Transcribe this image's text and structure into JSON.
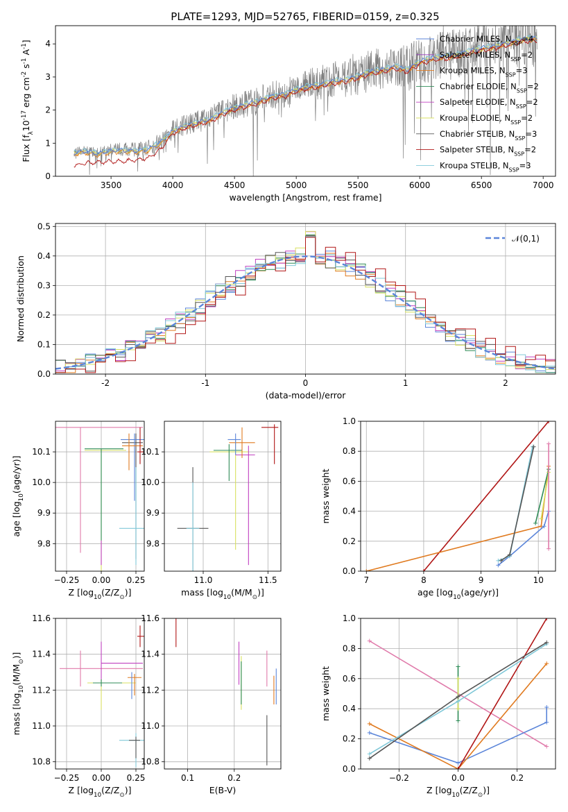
{
  "figure": {
    "title": "PLATE=1293, MJD=52765, FIBERID=0159, z=0.325"
  },
  "colors": {
    "chabrier_miles": "#5b85d9",
    "salpeter_miles": "#9a3fc0",
    "kroupa_miles": "#e07a1f",
    "chabrier_elodie": "#2e8b57",
    "salpeter_elodie": "#c040c0",
    "kroupa_elodie": "#d8e060",
    "chabrier_stelib": "#555555",
    "salpeter_stelib": "#b01515",
    "kroupa_stelib": "#80c8d8",
    "pink": "#e07aaa",
    "grey_data": "#808080"
  },
  "chart_data": [
    {
      "id": "spectrum",
      "type": "line",
      "xlabel": "wavelength [Angstrom, rest frame]",
      "ylabel": "Flux [f$_\\lambda$10$^{-17}$ erg cm$^{-2}$ s$^{-1}$ A$^{-1}$]",
      "xlim": [
        3050,
        7100
      ],
      "ylim": [
        0,
        4.55
      ],
      "xticks": [
        3500,
        4000,
        4500,
        5000,
        5500,
        6000,
        6500,
        7000
      ],
      "yticks": [
        0,
        1,
        2,
        3,
        4
      ],
      "grid": false,
      "legend_position": "upper-right",
      "legend": [
        {
          "name": "Chabrier MILES, N$_{SSP}$=4",
          "color_key": "chabrier_miles"
        },
        {
          "name": "Salpeter MILES, N$_{SSP}$=2",
          "color_key": "salpeter_miles"
        },
        {
          "name": "Kroupa MILES, N$_{SSP}$=3",
          "color_key": "kroupa_miles"
        },
        {
          "name": "Chabrier ELODIE, N$_{SSP}$=2",
          "color_key": "chabrier_elodie"
        },
        {
          "name": "Salpeter ELODIE, N$_{SSP}$=2",
          "color_key": "salpeter_elodie"
        },
        {
          "name": "Kroupa ELODIE, N$_{SSP}$=2",
          "color_key": "kroupa_elodie"
        },
        {
          "name": "Chabrier STELIB, N$_{SSP}$=3",
          "color_key": "chabrier_stelib"
        },
        {
          "name": "Salpeter STELIB, N$_{SSP}$=2",
          "color_key": "salpeter_stelib"
        },
        {
          "name": "Kroupa STELIB, N$_{SSP}$=3",
          "color_key": "kroupa_stelib"
        }
      ],
      "continuum": {
        "x": [
          3200,
          3300,
          3400,
          3500,
          3600,
          3700,
          3800,
          3900,
          4000,
          4100,
          4200,
          4300,
          4400,
          4500,
          4600,
          4700,
          4800,
          4900,
          5000,
          5100,
          5200,
          5300,
          5400,
          5500,
          5600,
          5700,
          5800,
          5900,
          6000,
          6100,
          6200,
          6300,
          6400,
          6500,
          6600,
          6700,
          6800,
          6900
        ],
        "model_red": [
          0.33,
          0.4,
          0.42,
          0.45,
          0.45,
          0.5,
          0.55,
          0.8,
          1.3,
          1.45,
          1.55,
          1.65,
          1.85,
          2.0,
          2.1,
          2.2,
          2.35,
          2.4,
          2.55,
          2.65,
          2.7,
          2.8,
          2.85,
          2.95,
          3.1,
          3.15,
          3.25,
          3.15,
          3.4,
          3.5,
          3.55,
          3.6,
          3.7,
          3.8,
          3.85,
          3.95,
          4.05,
          4.1
        ],
        "model_cyan": [
          0.75,
          0.78,
          0.72,
          0.8,
          0.82,
          0.8,
          0.85,
          1.05,
          1.4,
          1.55,
          1.65,
          1.75,
          1.95,
          2.1,
          2.2,
          2.3,
          2.45,
          2.5,
          2.65,
          2.75,
          2.8,
          2.9,
          2.95,
          3.05,
          3.2,
          3.25,
          3.35,
          3.25,
          3.5,
          3.6,
          3.65,
          3.7,
          3.8,
          3.9,
          3.95,
          4.05,
          4.15,
          4.2
        ]
      }
    },
    {
      "id": "residuals",
      "type": "histogram",
      "xlabel": "(data-model)/error",
      "ylabel": "Normed distribution",
      "xlim": [
        -2.5,
        2.5
      ],
      "ylim": [
        0,
        0.51
      ],
      "xticks": [
        -2,
        -1,
        0,
        1,
        2
      ],
      "yticks": [
        0.0,
        0.1,
        0.2,
        0.3,
        0.4,
        0.5
      ],
      "grid": true,
      "legend_position": "upper-right",
      "legend": [
        {
          "name": "$\\mathcal{N}(0,1)$",
          "color_key": "chabrier_miles",
          "style": "dashed"
        }
      ]
    },
    {
      "id": "age_vs_Z",
      "type": "errorbar",
      "xlabel": "Z [log$_{10}$(Z/Z$_\\odot$)]",
      "ylabel": "age  [log$_{10}$(age/yr)]",
      "xlim": [
        -0.33,
        0.31
      ],
      "ylim": [
        9.71,
        10.2
      ],
      "xticks": [
        -0.25,
        0.0,
        0.25
      ],
      "yticks": [
        9.8,
        9.9,
        10.0,
        10.1
      ],
      "tick_labels_x": [
        "−0.25",
        "0.00",
        "0.25"
      ],
      "grid": true
    },
    {
      "id": "age_vs_mass",
      "type": "errorbar",
      "xlabel": "mass [log$_{10}$(M/M$_\\odot$)]",
      "xlim": [
        10.7,
        11.6
      ],
      "ylim": [
        9.71,
        10.2
      ],
      "xticks": [
        11.0,
        11.5
      ],
      "yticks": [
        9.8,
        9.9,
        10.0,
        10.1
      ],
      "grid": true
    },
    {
      "id": "weight_vs_age",
      "type": "line",
      "xlabel": "age  [log$_{10}$(age/yr)]",
      "ylabel": "mass weight",
      "xlim": [
        6.9,
        10.3
      ],
      "ylim": [
        0,
        1.0
      ],
      "xticks": [
        7,
        8,
        9,
        10
      ],
      "yticks": [
        0.0,
        0.2,
        0.4,
        0.6,
        0.8,
        1.0
      ],
      "grid": true,
      "series": [
        {
          "color_key": "salpeter_stelib",
          "x": [
            8.0,
            10.18
          ],
          "y": [
            0.0,
            1.0
          ]
        },
        {
          "color_key": "kroupa_miles",
          "x": [
            7.0,
            10.05,
            10.18
          ],
          "y": [
            0.0,
            0.3,
            0.7
          ]
        },
        {
          "color_key": "chabrier_miles",
          "x": [
            9.3,
            9.5,
            10.1,
            10.18
          ],
          "y": [
            0.04,
            0.1,
            0.3,
            0.4
          ]
        },
        {
          "color_key": "chabrier_elodie",
          "x": [
            9.95,
            10.18
          ],
          "y": [
            0.32,
            0.68
          ]
        },
        {
          "color_key": "kroupa_elodie",
          "x": [
            10.05,
            10.18
          ],
          "y": [
            0.35,
            0.66
          ]
        },
        {
          "color_key": "kroupa_stelib",
          "x": [
            9.3,
            9.5,
            9.9
          ],
          "y": [
            0.07,
            0.1,
            0.83
          ]
        },
        {
          "color_key": "chabrier_stelib",
          "x": [
            9.35,
            9.5,
            9.92
          ],
          "y": [
            0.07,
            0.11,
            0.83
          ]
        },
        {
          "color_key": "pink",
          "x": [
            10.18,
            10.18
          ],
          "y": [
            0.15,
            0.85
          ]
        }
      ]
    },
    {
      "id": "mass_vs_Z",
      "type": "errorbar",
      "xlabel": "Z [log$_{10}$(Z/Z$_\\odot$)]",
      "ylabel": "mass [log$_{10}$(M/M$_\\odot$)]",
      "xlim": [
        -0.33,
        0.31
      ],
      "ylim": [
        10.76,
        11.6
      ],
      "xticks": [
        -0.25,
        0.0,
        0.25
      ],
      "yticks": [
        10.8,
        11.0,
        11.2,
        11.4,
        11.6
      ],
      "tick_labels_x": [
        "−0.25",
        "0.00",
        "0.25"
      ],
      "grid": true
    },
    {
      "id": "mass_vs_EBV",
      "type": "errorbar",
      "xlabel": "E(B-V)",
      "xlim": [
        0.05,
        0.3
      ],
      "ylim": [
        10.76,
        11.6
      ],
      "xticks": [
        0.1,
        0.2
      ],
      "yticks": [
        10.8,
        11.0,
        11.2,
        11.4,
        11.6
      ],
      "grid": true
    },
    {
      "id": "weight_vs_Z",
      "type": "line",
      "xlabel": "Z [log$_{10}$(Z/Z$_\\odot$)]",
      "ylabel": "mass weight",
      "xlim": [
        -0.33,
        0.33
      ],
      "ylim": [
        0,
        1.0
      ],
      "xticks": [
        -0.2,
        0.0,
        0.2
      ],
      "yticks": [
        0.0,
        0.2,
        0.4,
        0.6,
        0.8,
        1.0
      ],
      "tick_labels_x": [
        "−0.2",
        "0.0",
        "0.2"
      ],
      "grid": true,
      "series": [
        {
          "color_key": "pink",
          "x": [
            -0.3,
            0.3
          ],
          "y": [
            0.85,
            0.15
          ]
        },
        {
          "color_key": "chabrier_miles",
          "x": [
            -0.3,
            0.0,
            0.3,
            0.3
          ],
          "y": [
            0.24,
            0.04,
            0.31,
            0.41
          ]
        },
        {
          "color_key": "kroupa_miles",
          "x": [
            -0.3,
            0.0,
            0.3
          ],
          "y": [
            0.3,
            0.0,
            0.7
          ]
        },
        {
          "color_key": "salpeter_stelib",
          "x": [
            0.0,
            0.3
          ],
          "y": [
            0.0,
            1.0
          ]
        },
        {
          "color_key": "chabrier_elodie",
          "x": [
            0.0,
            0.0
          ],
          "y": [
            0.32,
            0.68
          ]
        },
        {
          "color_key": "kroupa_elodie",
          "x": [
            0.0,
            0.0
          ],
          "y": [
            0.4,
            0.6
          ]
        },
        {
          "color_key": "kroupa_stelib",
          "x": [
            -0.3,
            0.0,
            0.3
          ],
          "y": [
            0.1,
            0.45,
            0.83
          ]
        },
        {
          "color_key": "chabrier_stelib",
          "x": [
            -0.3,
            0.0,
            0.3
          ],
          "y": [
            0.07,
            0.48,
            0.84
          ]
        }
      ]
    }
  ]
}
